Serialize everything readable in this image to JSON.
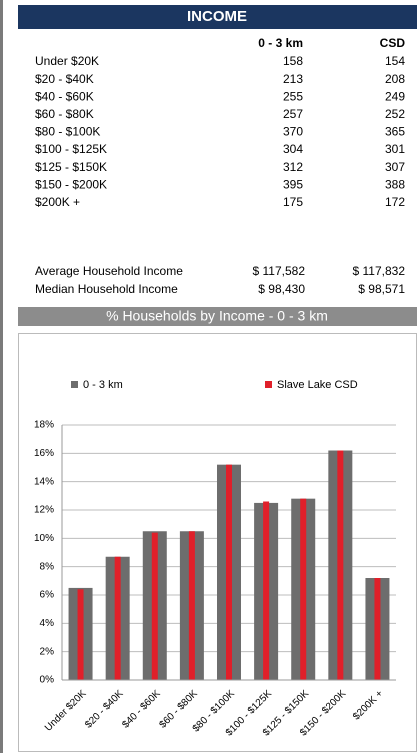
{
  "header": {
    "title": "INCOME"
  },
  "table": {
    "columns": [
      "0 - 3 km",
      "CSD"
    ],
    "rows": [
      [
        "Under $20K",
        158,
        154
      ],
      [
        "$20 - $40K",
        213,
        208
      ],
      [
        "$40 - $60K",
        255,
        249
      ],
      [
        "$60 - $80K",
        257,
        252
      ],
      [
        "$80 - $100K",
        370,
        365
      ],
      [
        "$100 - $125K",
        304,
        301
      ],
      [
        "$125 - $150K",
        312,
        307
      ],
      [
        "$150 - $200K",
        395,
        388
      ],
      [
        "$200K +",
        175,
        172
      ]
    ],
    "summary": [
      [
        "Average Household Income",
        "$ 117,582",
        "$ 117,832"
      ],
      [
        "Median Household Income",
        "$ 98,430",
        "$ 98,571"
      ]
    ]
  },
  "chart_data": {
    "type": "bar",
    "title": "% Households by Income - 0 - 3 km",
    "categories": [
      "Under $20K",
      "$20 - $40K",
      "$40 - $60K",
      "$60 - $80K",
      "$80 - $100K",
      "$100 - $125K",
      "$125 - $150K",
      "$150 - $200K",
      "$200K +"
    ],
    "series": [
      {
        "name": "0 - 3 km",
        "color": "#6d6d6d",
        "values": [
          6.5,
          8.7,
          10.5,
          10.5,
          15.2,
          12.5,
          12.8,
          16.2,
          7.2
        ]
      },
      {
        "name": "Slave Lake CSD",
        "color": "#e0202a",
        "values": [
          6.4,
          8.7,
          10.4,
          10.5,
          15.2,
          12.6,
          12.8,
          16.2,
          7.2
        ]
      }
    ],
    "ylim": [
      0,
      18
    ],
    "yticks": [
      {
        "value": 0,
        "label": "0%"
      },
      {
        "value": 2,
        "label": "2%"
      },
      {
        "value": 4,
        "label": "4%"
      },
      {
        "value": 6,
        "label": "6%"
      },
      {
        "value": 8,
        "label": "8%"
      },
      {
        "value": 10,
        "label": "10%"
      },
      {
        "value": 12,
        "label": "12%"
      },
      {
        "value": 14,
        "label": "14%"
      },
      {
        "value": 16,
        "label": "16%"
      },
      {
        "value": 18,
        "label": "18%"
      }
    ],
    "grid": true,
    "legend": "top"
  }
}
